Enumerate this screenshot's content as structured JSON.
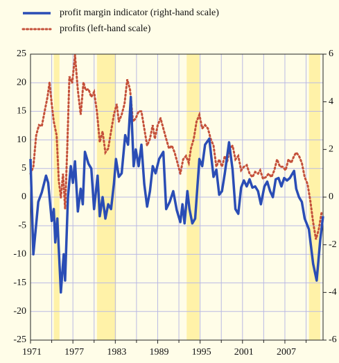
{
  "chart_data": {
    "type": "line",
    "xlim": [
      1971,
      2012.4
    ],
    "xticks": [
      1971,
      1977,
      1983,
      1989,
      1995,
      2001,
      2007
    ],
    "x_minor_ticks": [
      1974,
      1980,
      1986,
      1992,
      1998,
      2004,
      2010
    ],
    "ylim": [
      -25,
      25
    ],
    "yticks": [
      -25,
      -20,
      -15,
      -10,
      -5,
      0,
      5,
      10,
      15,
      20,
      25
    ],
    "y2lim": [
      -6,
      6
    ],
    "y2ticks": [
      -6,
      -4,
      -2,
      0,
      2,
      4,
      6
    ],
    "grid": true,
    "shaded_periods": [
      [
        1974.3,
        1975.1
      ],
      [
        1980.4,
        1983.1
      ],
      [
        1993.1,
        1994.9
      ],
      [
        2010.4,
        2012.0
      ]
    ],
    "shade_color": "#fff2a8",
    "series": [
      {
        "name": "profit margin indicator (right-hand scale)",
        "color": "#2a4db5",
        "axis": "y2",
        "style": "solid",
        "x": [
          1971.0,
          1971.4,
          1972.1,
          1972.6,
          1973.2,
          1973.5,
          1974.0,
          1974.3,
          1974.5,
          1974.8,
          1975.3,
          1975.7,
          1975.9,
          1976.3,
          1976.7,
          1977.0,
          1977.3,
          1977.7,
          1978.1,
          1978.4,
          1978.7,
          1979.2,
          1979.6,
          1980.0,
          1980.5,
          1980.8,
          1981.2,
          1981.6,
          1982.0,
          1982.4,
          1982.8,
          1983.1,
          1983.5,
          1983.9,
          1984.4,
          1984.8,
          1985.2,
          1985.6,
          1985.9,
          1986.3,
          1986.7,
          1987.1,
          1987.5,
          1987.9,
          1988.3,
          1988.7,
          1989.2,
          1989.8,
          1990.2,
          1990.7,
          1991.2,
          1991.7,
          1992.2,
          1992.5,
          1992.8,
          1993.2,
          1993.5,
          1993.9,
          1994.3,
          1994.9,
          1995.3,
          1995.7,
          1996.3,
          1996.9,
          1997.3,
          1997.7,
          1998.1,
          1998.5,
          1999.1,
          1999.6,
          2000.0,
          2000.4,
          2000.8,
          2001.2,
          2001.6,
          2002.0,
          2002.4,
          2002.8,
          2003.2,
          2003.6,
          2004.1,
          2004.5,
          2004.9,
          2005.3,
          2005.7,
          2006.1,
          2006.5,
          2006.9,
          2007.3,
          2007.7,
          2008.3,
          2008.6,
          2009.0,
          2009.4,
          2009.8,
          2010.4,
          2011.0,
          2011.5,
          2012.0,
          2012.4
        ],
        "values": [
          1.6,
          -2.4,
          -0.2,
          0.2,
          0.9,
          0.6,
          -1.0,
          -0.5,
          -1.9,
          -0.9,
          -4.0,
          -2.4,
          -3.5,
          0.0,
          1.3,
          0.6,
          1.5,
          -0.6,
          0.35,
          -0.3,
          1.9,
          1.4,
          1.2,
          -0.5,
          0.9,
          -0.8,
          0.0,
          -0.9,
          -0.3,
          -0.5,
          0.55,
          1.6,
          0.85,
          1.0,
          2.6,
          2.2,
          4.2,
          1.3,
          2.0,
          1.3,
          2.2,
          0.55,
          -0.4,
          0.25,
          1.3,
          1.0,
          1.6,
          1.9,
          -0.5,
          -0.2,
          0.25,
          -0.55,
          -1.05,
          -0.3,
          -1.1,
          0.25,
          -0.5,
          -1.1,
          -0.9,
          1.6,
          1.3,
          2.2,
          2.45,
          0.85,
          1.15,
          0.1,
          0.25,
          1.0,
          2.3,
          1.15,
          -0.5,
          -0.7,
          0.4,
          0.7,
          0.45,
          0.75,
          0.4,
          0.45,
          0.25,
          -0.3,
          0.45,
          0.65,
          0.25,
          0.0,
          0.75,
          0.8,
          0.45,
          0.8,
          0.7,
          0.8,
          1.1,
          0.35,
          0.0,
          -0.2,
          -0.9,
          -1.35,
          -2.8,
          -3.5,
          -1.8,
          -0.8
        ]
      },
      {
        "name": "profits (left-hand scale)",
        "color": "#c4503a",
        "axis": "y",
        "style": "dotted",
        "x": [
          1971.0,
          1971.4,
          1971.8,
          1972.2,
          1972.6,
          1973.0,
          1973.4,
          1973.7,
          1974.0,
          1974.3,
          1974.7,
          1975.0,
          1975.3,
          1975.6,
          1975.9,
          1976.2,
          1976.5,
          1976.9,
          1977.3,
          1977.7,
          1978.1,
          1978.5,
          1978.8,
          1979.2,
          1979.6,
          1980.0,
          1980.4,
          1980.8,
          1981.2,
          1981.6,
          1982.0,
          1982.4,
          1982.8,
          1983.2,
          1983.5,
          1983.9,
          1984.3,
          1984.7,
          1985.1,
          1985.5,
          1985.9,
          1986.3,
          1986.7,
          1987.1,
          1987.5,
          1987.9,
          1988.3,
          1988.6,
          1989.0,
          1989.4,
          1989.8,
          1990.2,
          1990.6,
          1991.0,
          1991.4,
          1991.8,
          1992.2,
          1992.6,
          1993.0,
          1993.4,
          1993.7,
          1994.1,
          1994.5,
          1994.9,
          1995.3,
          1995.7,
          1996.1,
          1996.5,
          1996.9,
          1997.3,
          1997.7,
          1998.1,
          1998.5,
          1998.8,
          1999.2,
          1999.6,
          2000.0,
          2000.4,
          2000.8,
          2001.2,
          2001.6,
          2002.0,
          2002.4,
          2002.8,
          2003.2,
          2003.5,
          2003.9,
          2004.3,
          2004.7,
          2005.1,
          2005.5,
          2005.9,
          2006.3,
          2006.7,
          2007.1,
          2007.5,
          2007.9,
          2008.3,
          2008.6,
          2009.0,
          2009.4,
          2009.8,
          2010.2,
          2010.6,
          2011.0,
          2011.4,
          2011.8,
          2012.2
        ],
        "values": [
          4.1,
          5.3,
          10.8,
          12.6,
          12.4,
          15.0,
          17.5,
          20.1,
          16.3,
          13.2,
          10.8,
          2.9,
          -0.1,
          4.1,
          -2.0,
          8.5,
          21.1,
          19.9,
          24.8,
          18.7,
          14.4,
          20.1,
          18.7,
          18.9,
          17.5,
          18.4,
          15.0,
          9.6,
          11.5,
          7.8,
          8.5,
          11.5,
          14.4,
          16.3,
          13.2,
          14.4,
          16.3,
          20.6,
          18.7,
          13.2,
          13.8,
          15.0,
          15.0,
          12.0,
          9.0,
          10.2,
          12.6,
          10.2,
          12.6,
          13.8,
          12.0,
          10.2,
          8.5,
          9.0,
          7.8,
          6.0,
          4.1,
          6.6,
          7.2,
          6.0,
          8.5,
          10.2,
          13.2,
          14.4,
          12.0,
          12.6,
          12.0,
          10.2,
          9.0,
          5.3,
          6.6,
          5.3,
          7.2,
          6.0,
          8.5,
          9.0,
          6.6,
          7.2,
          4.7,
          5.3,
          5.6,
          4.1,
          3.5,
          4.4,
          4.1,
          4.7,
          3.2,
          3.5,
          4.1,
          3.5,
          4.7,
          6.6,
          5.3,
          5.3,
          4.7,
          6.6,
          6.0,
          7.2,
          7.8,
          7.2,
          6.0,
          3.5,
          2.3,
          -0.7,
          -4.4,
          -7.4,
          -5.6,
          -2.6
        ]
      }
    ]
  }
}
